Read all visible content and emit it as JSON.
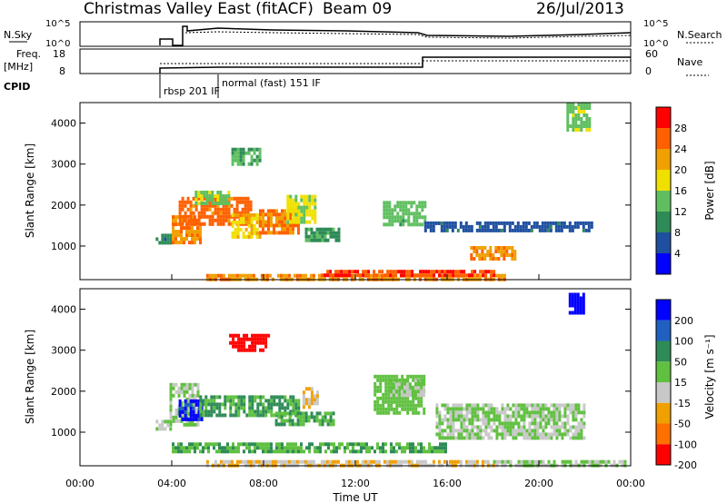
{
  "header": {
    "station": "Christmas Valley East (fitACF)",
    "beam": "Beam 09",
    "date": "26/Jul/2013"
  },
  "noise_panel": {
    "left_label": "N.Sky",
    "left_ticks": [
      "10^5",
      "10^0"
    ],
    "right_label": "N.Search",
    "right_ticks": [
      "10^5",
      "10^0"
    ]
  },
  "freq_panel": {
    "left_label_1": "Freq.",
    "left_label_2": "[MHz]",
    "left_ticks": [
      "18",
      "8"
    ],
    "right_label": "Nave",
    "right_ticks": [
      "60",
      "0"
    ]
  },
  "cpid_panel": {
    "label": "CPID",
    "modes": [
      {
        "name": "rbsp 201 IF",
        "start_hour": 3.4
      },
      {
        "name": "normal (fast) 151 IF",
        "start_hour": 6.0
      }
    ]
  },
  "colors": {
    "power_scale": [
      "#0000ff",
      "#1f4fa0",
      "#2e8b57",
      "#5fbf60",
      "#f0e000",
      "#f0a000",
      "#ff6000",
      "#ff0000"
    ],
    "velocity_scale": [
      "#0000ff",
      "#2060c0",
      "#2e8b57",
      "#60c040",
      "#c8c8c8",
      "#f0a000",
      "#ff7000",
      "#ff0000"
    ]
  },
  "chart_data": [
    {
      "type": "heatmap",
      "name": "power",
      "ylabel": "Slant Range [km]",
      "yticks": [
        "4000",
        "3000",
        "2000",
        "1000"
      ],
      "ylim": [
        180,
        4500
      ],
      "xlim": [
        0,
        24
      ],
      "colorbar": {
        "label": "Power [dB]",
        "ticks": [
          "28",
          "24",
          "20",
          "16",
          "12",
          "8",
          "4"
        ],
        "range": [
          0,
          30
        ]
      },
      "regions": [
        {
          "t0": 3.3,
          "t1": 3.9,
          "r0": 1050,
          "r1": 1300,
          "value": 9
        },
        {
          "t0": 4.0,
          "t1": 5.3,
          "r0": 1100,
          "r1": 1750,
          "value": 22
        },
        {
          "t0": 4.3,
          "t1": 7.5,
          "r0": 1500,
          "r1": 2200,
          "value": 24
        },
        {
          "t0": 5.0,
          "t1": 6.5,
          "r0": 2000,
          "r1": 2350,
          "value": 14
        },
        {
          "t0": 6.6,
          "t1": 7.9,
          "r0": 1250,
          "r1": 1800,
          "value": 18
        },
        {
          "t0": 7.8,
          "t1": 9.5,
          "r0": 1300,
          "r1": 1900,
          "value": 23
        },
        {
          "t0": 9.0,
          "t1": 10.3,
          "r0": 1600,
          "r1": 2250,
          "value": 16
        },
        {
          "t0": 9.8,
          "t1": 11.3,
          "r0": 1150,
          "r1": 1450,
          "value": 10
        },
        {
          "t0": 6.6,
          "t1": 7.8,
          "r0": 3000,
          "r1": 3400,
          "value": 12
        },
        {
          "t0": 13.2,
          "t1": 15.0,
          "r0": 1500,
          "r1": 2100,
          "value": 13
        },
        {
          "t0": 15.0,
          "t1": 22.3,
          "r0": 1350,
          "r1": 1600,
          "value": 6
        },
        {
          "t0": 17.0,
          "t1": 19.0,
          "r0": 700,
          "r1": 1000,
          "value": 22
        },
        {
          "t0": 21.2,
          "t1": 22.2,
          "r0": 3800,
          "r1": 4500,
          "value": 14
        },
        {
          "t0": 5.5,
          "t1": 18.5,
          "r0": 200,
          "r1": 320,
          "value": 22
        },
        {
          "t0": 10.5,
          "t1": 18.0,
          "r0": 300,
          "r1": 420,
          "value": 26
        }
      ]
    },
    {
      "type": "heatmap",
      "name": "velocity",
      "ylabel": "Slant Range [km]",
      "yticks": [
        "4000",
        "3000",
        "2000",
        "1000"
      ],
      "ylim": [
        180,
        4500
      ],
      "xlim": [
        0,
        24
      ],
      "xlabel": "Time UT",
      "xticks": [
        "00:00",
        "04:00",
        "08:00",
        "12:00",
        "16:00",
        "20:00",
        "00:00"
      ],
      "colorbar": {
        "label": "Velocity [m s⁻¹]",
        "ticks": [
          "200",
          "100",
          "50",
          "15",
          "-15",
          "-50",
          "-100",
          "-200"
        ],
        "range": [
          -250,
          250
        ]
      },
      "regions": [
        {
          "t0": 3.3,
          "t1": 3.9,
          "r0": 1050,
          "r1": 1300,
          "value": 0
        },
        {
          "t0": 3.9,
          "t1": 5.2,
          "r0": 1200,
          "r1": 2200,
          "value": 5
        },
        {
          "t0": 4.3,
          "t1": 5.3,
          "r0": 1300,
          "r1": 1800,
          "value": 200
        },
        {
          "t0": 5.2,
          "t1": 9.5,
          "r0": 1400,
          "r1": 1900,
          "value": 70
        },
        {
          "t0": 8.5,
          "t1": 11.0,
          "r0": 1150,
          "r1": 1500,
          "value": 60
        },
        {
          "t0": 9.7,
          "t1": 10.4,
          "r0": 1600,
          "r1": 2100,
          "value": -60
        },
        {
          "t0": 6.5,
          "t1": 8.2,
          "r0": 3000,
          "r1": 3400,
          "value": -220
        },
        {
          "t0": 12.8,
          "t1": 15.0,
          "r0": 1500,
          "r1": 2400,
          "value": 30
        },
        {
          "t0": 13.5,
          "t1": 15.0,
          "r0": 1900,
          "r1": 2300,
          "value": 0
        },
        {
          "t0": 15.5,
          "t1": 22.0,
          "r0": 900,
          "r1": 1700,
          "value": 0
        },
        {
          "t0": 21.3,
          "t1": 22.0,
          "r0": 3900,
          "r1": 4400,
          "value": 220
        },
        {
          "t0": 5.5,
          "t1": 18.0,
          "r0": 200,
          "r1": 320,
          "value": -60
        },
        {
          "t0": 4.0,
          "t1": 16.0,
          "r0": 550,
          "r1": 750,
          "value": 60
        },
        {
          "t0": 18.0,
          "t1": 23.8,
          "r0": 200,
          "r1": 320,
          "value": 5
        }
      ]
    }
  ]
}
